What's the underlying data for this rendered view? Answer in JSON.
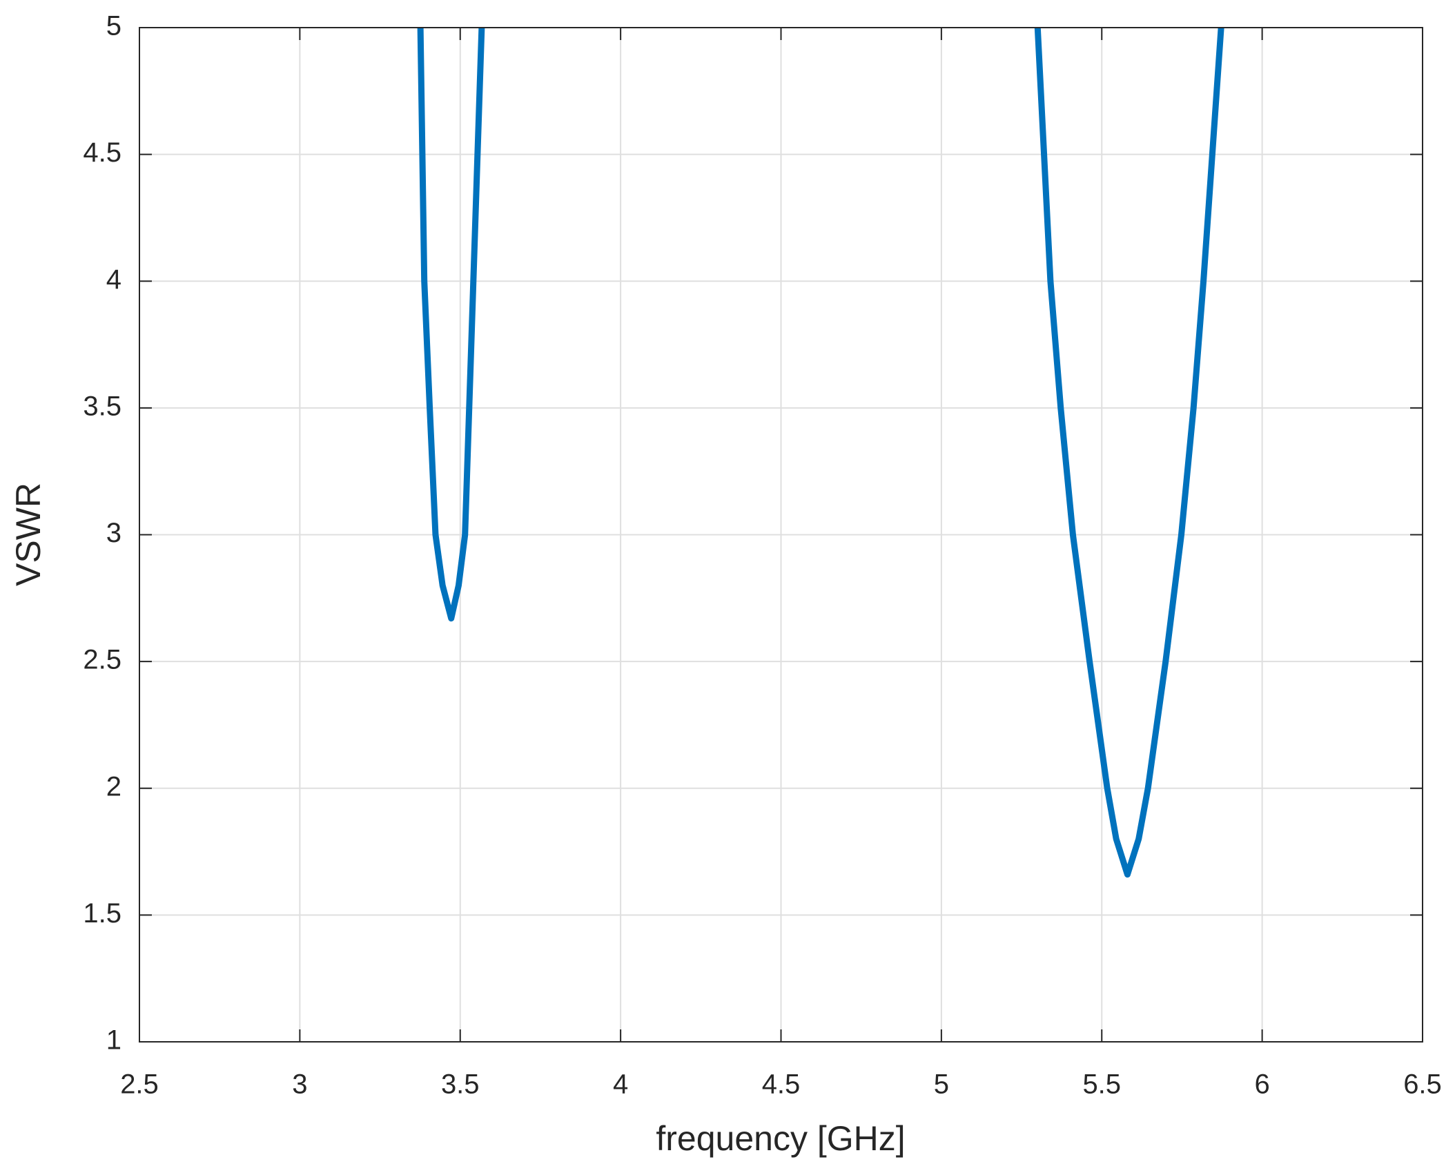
{
  "chart_data": {
    "type": "line",
    "xlabel": "frequency [GHz]",
    "ylabel": "VSWR",
    "x": [
      3.376,
      3.388,
      3.405,
      3.423,
      3.445,
      3.472,
      3.495,
      3.515,
      3.528,
      3.541,
      3.567,
      null,
      5.3,
      5.34,
      5.372,
      5.41,
      5.462,
      5.517,
      5.545,
      5.58,
      5.615,
      5.644,
      5.699,
      5.748,
      5.786,
      5.817,
      5.872
    ],
    "series": [
      {
        "color": "#0072bd",
        "values": [
          5,
          4,
          3.5,
          3,
          2.8,
          2.67,
          2.8,
          3,
          3.5,
          4,
          5,
          null,
          5,
          4,
          3.5,
          3,
          2.5,
          2,
          1.8,
          1.66,
          1.8,
          2,
          2.5,
          3,
          3.5,
          4,
          5
        ]
      }
    ],
    "xlim": [
      2.5,
      6.5
    ],
    "xticks": [
      2.5,
      3,
      3.5,
      4,
      4.5,
      5,
      5.5,
      6,
      6.5
    ],
    "ylim": [
      1,
      5
    ],
    "yticks": [
      1,
      1.5,
      2,
      2.5,
      3,
      3.5,
      4,
      4.5,
      5
    ],
    "grid": true
  }
}
